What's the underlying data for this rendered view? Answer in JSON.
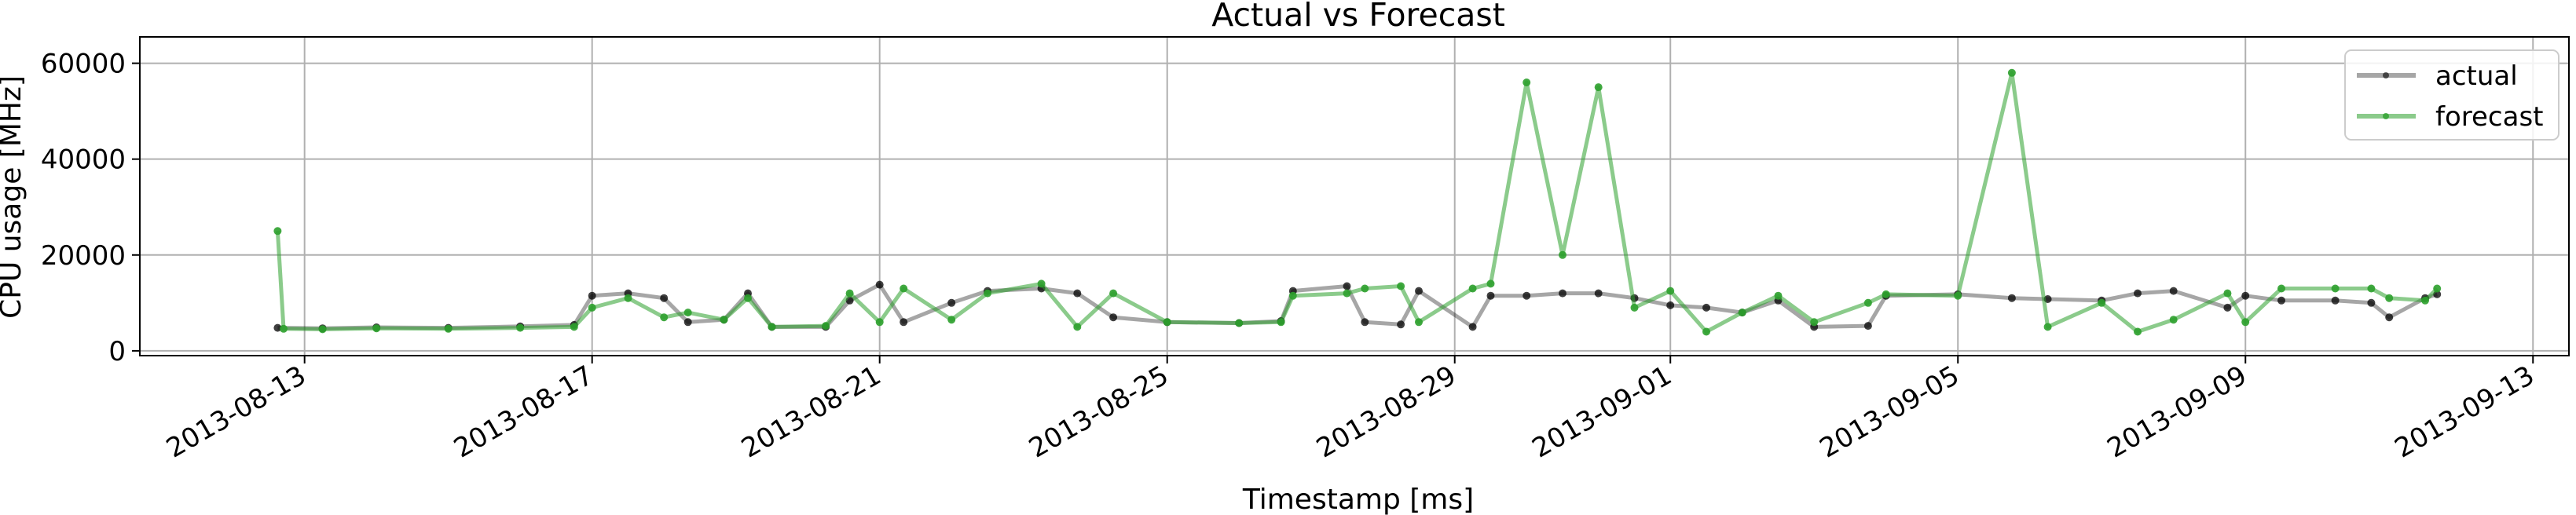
{
  "chart_data": {
    "type": "line",
    "title": "Actual vs Forecast",
    "xlabel": "Timestamp [ms]",
    "ylabel": "CPU usage [MHz]",
    "xlim": [
      "2013-08-10T17:00",
      "2013-09-13T12:00"
    ],
    "ylim": [
      -1000,
      65500
    ],
    "x_ticks": [
      "2013-08-13",
      "2013-08-17",
      "2013-08-21",
      "2013-08-25",
      "2013-08-29",
      "2013-09-01",
      "2013-09-05",
      "2013-09-09",
      "2013-09-13"
    ],
    "y_ticks": [
      0,
      20000,
      40000,
      60000
    ],
    "y_tick_labels": [
      "0",
      "20000",
      "40000",
      "60000"
    ],
    "grid": true,
    "legend_position": "top-right",
    "series": [
      {
        "name": "actual",
        "color": "#000000",
        "alpha": 0.35,
        "points": [
          [
            "2013-08-12T15:00",
            4800
          ],
          [
            "2013-08-13T06:00",
            4700
          ],
          [
            "2013-08-14T00:00",
            4900
          ],
          [
            "2013-08-15T00:00",
            4800
          ],
          [
            "2013-08-16T00:00",
            5100
          ],
          [
            "2013-08-16T18:00",
            5400
          ],
          [
            "2013-08-17T00:00",
            11500
          ],
          [
            "2013-08-17T12:00",
            12000
          ],
          [
            "2013-08-18T00:00",
            11000
          ],
          [
            "2013-08-18T08:00",
            6000
          ],
          [
            "2013-08-18T20:00",
            6500
          ],
          [
            "2013-08-19T04:00",
            12000
          ],
          [
            "2013-08-19T12:00",
            5000
          ],
          [
            "2013-08-20T06:00",
            5000
          ],
          [
            "2013-08-20T14:00",
            10500
          ],
          [
            "2013-08-21T00:00",
            13800
          ],
          [
            "2013-08-21T08:00",
            6000
          ],
          [
            "2013-08-22T00:00",
            10000
          ],
          [
            "2013-08-22T12:00",
            12500
          ],
          [
            "2013-08-23T06:00",
            13000
          ],
          [
            "2013-08-23T18:00",
            12000
          ],
          [
            "2013-08-24T06:00",
            7000
          ],
          [
            "2013-08-25T00:00",
            6000
          ],
          [
            "2013-08-26T00:00",
            5800
          ],
          [
            "2013-08-26T14:00",
            6200
          ],
          [
            "2013-08-26T18:00",
            12500
          ],
          [
            "2013-08-27T12:00",
            13500
          ],
          [
            "2013-08-27T18:00",
            6000
          ],
          [
            "2013-08-28T06:00",
            5500
          ],
          [
            "2013-08-28T12:00",
            12500
          ],
          [
            "2013-08-29T06:00",
            5000
          ],
          [
            "2013-08-29T12:00",
            11500
          ],
          [
            "2013-08-30T00:00",
            11500
          ],
          [
            "2013-08-30T12:00",
            12000
          ],
          [
            "2013-08-31T00:00",
            12000
          ],
          [
            "2013-08-31T12:00",
            11000
          ],
          [
            "2013-09-01T00:00",
            9500
          ],
          [
            "2013-09-01T12:00",
            9000
          ],
          [
            "2013-09-02T00:00",
            8000
          ],
          [
            "2013-09-02T12:00",
            10500
          ],
          [
            "2013-09-03T00:00",
            5000
          ],
          [
            "2013-09-03T18:00",
            5200
          ],
          [
            "2013-09-04T00:00",
            11500
          ],
          [
            "2013-09-05T00:00",
            11800
          ],
          [
            "2013-09-05T18:00",
            11000
          ],
          [
            "2013-09-06T06:00",
            10800
          ],
          [
            "2013-09-07T00:00",
            10500
          ],
          [
            "2013-09-07T12:00",
            12000
          ],
          [
            "2013-09-08T00:00",
            12500
          ],
          [
            "2013-09-08T18:00",
            9000
          ],
          [
            "2013-09-09T00:00",
            11500
          ],
          [
            "2013-09-09T12:00",
            10500
          ],
          [
            "2013-09-10T06:00",
            10500
          ],
          [
            "2013-09-10T18:00",
            10000
          ],
          [
            "2013-09-11T00:00",
            7000
          ],
          [
            "2013-09-11T12:00",
            11000
          ],
          [
            "2013-09-11T16:00",
            11800
          ]
        ]
      },
      {
        "name": "forecast",
        "color": "#2ca02c",
        "alpha": 0.55,
        "points": [
          [
            "2013-08-12T15:00",
            25000
          ],
          [
            "2013-08-12T17:00",
            4600
          ],
          [
            "2013-08-13T06:00",
            4500
          ],
          [
            "2013-08-14T00:00",
            4700
          ],
          [
            "2013-08-15T00:00",
            4600
          ],
          [
            "2013-08-16T00:00",
            4800
          ],
          [
            "2013-08-16T18:00",
            5000
          ],
          [
            "2013-08-17T00:00",
            9000
          ],
          [
            "2013-08-17T12:00",
            11000
          ],
          [
            "2013-08-18T00:00",
            7000
          ],
          [
            "2013-08-18T08:00",
            8000
          ],
          [
            "2013-08-18T20:00",
            6500
          ],
          [
            "2013-08-19T04:00",
            11000
          ],
          [
            "2013-08-19T12:00",
            5000
          ],
          [
            "2013-08-20T06:00",
            5200
          ],
          [
            "2013-08-20T14:00",
            12000
          ],
          [
            "2013-08-21T00:00",
            6000
          ],
          [
            "2013-08-21T08:00",
            13000
          ],
          [
            "2013-08-22T00:00",
            6500
          ],
          [
            "2013-08-22T12:00",
            12000
          ],
          [
            "2013-08-23T06:00",
            14000
          ],
          [
            "2013-08-23T18:00",
            5000
          ],
          [
            "2013-08-24T06:00",
            12000
          ],
          [
            "2013-08-25T00:00",
            6000
          ],
          [
            "2013-08-26T00:00",
            5800
          ],
          [
            "2013-08-26T14:00",
            6000
          ],
          [
            "2013-08-26T18:00",
            11500
          ],
          [
            "2013-08-27T12:00",
            12000
          ],
          [
            "2013-08-27T18:00",
            13000
          ],
          [
            "2013-08-28T06:00",
            13500
          ],
          [
            "2013-08-28T12:00",
            6000
          ],
          [
            "2013-08-29T06:00",
            13000
          ],
          [
            "2013-08-29T12:00",
            14000
          ],
          [
            "2013-08-30T00:00",
            56000
          ],
          [
            "2013-08-30T12:00",
            20000
          ],
          [
            "2013-08-31T00:00",
            55000
          ],
          [
            "2013-08-31T12:00",
            9000
          ],
          [
            "2013-09-01T00:00",
            12500
          ],
          [
            "2013-09-01T12:00",
            4000
          ],
          [
            "2013-09-02T00:00",
            8000
          ],
          [
            "2013-09-02T12:00",
            11500
          ],
          [
            "2013-09-03T00:00",
            6000
          ],
          [
            "2013-09-03T18:00",
            10000
          ],
          [
            "2013-09-04T00:00",
            11800
          ],
          [
            "2013-09-05T00:00",
            11500
          ],
          [
            "2013-09-05T18:00",
            58000
          ],
          [
            "2013-09-06T06:00",
            5000
          ],
          [
            "2013-09-07T00:00",
            10000
          ],
          [
            "2013-09-07T12:00",
            4000
          ],
          [
            "2013-09-08T00:00",
            6500
          ],
          [
            "2013-09-08T18:00",
            12000
          ],
          [
            "2013-09-09T00:00",
            6000
          ],
          [
            "2013-09-09T12:00",
            13000
          ],
          [
            "2013-09-10T06:00",
            13000
          ],
          [
            "2013-09-10T18:00",
            13000
          ],
          [
            "2013-09-11T00:00",
            11000
          ],
          [
            "2013-09-11T12:00",
            10500
          ],
          [
            "2013-09-11T16:00",
            13000
          ]
        ]
      }
    ]
  }
}
